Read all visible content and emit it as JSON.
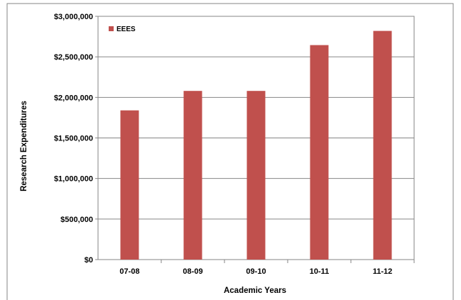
{
  "chart_data": {
    "type": "bar",
    "categories": [
      "07-08",
      "08-09",
      "09-10",
      "10-11",
      "11-12"
    ],
    "series": [
      {
        "name": "EEES",
        "values": [
          1840000,
          2080000,
          2080000,
          2645000,
          2820000
        ],
        "color": "#c0504d"
      }
    ],
    "xlabel": "Academic Years",
    "ylabel": "Research Expenditures",
    "ylim": [
      0,
      3000000
    ],
    "y_ticks": [
      0,
      500000,
      1000000,
      1500000,
      2000000,
      2500000,
      3000000
    ],
    "y_tick_labels": [
      "$0",
      "$500,000",
      "$1,000,000",
      "$1,500,000",
      "$2,000,000",
      "$2,500,000",
      "$3,000,000"
    ],
    "grid": true,
    "legend_position": "top-left",
    "gridline_color": "#868686",
    "border_color": "#868686"
  }
}
